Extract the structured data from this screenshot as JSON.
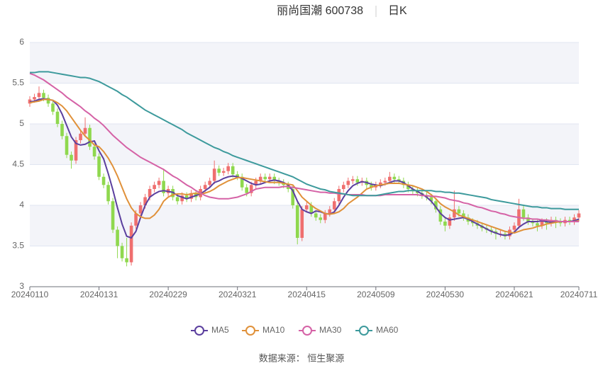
{
  "chart_data": {
    "type": "candlestick",
    "title": "丽尚国潮 600738",
    "subtitle": "日K",
    "source": "数据来源： 恒生聚源",
    "categories": [
      "20240110",
      null,
      null,
      null,
      null,
      null,
      null,
      null,
      null,
      null,
      null,
      null,
      null,
      null,
      null,
      "20240131",
      null,
      null,
      null,
      null,
      null,
      null,
      null,
      null,
      null,
      null,
      null,
      null,
      null,
      null,
      "20240229",
      null,
      null,
      null,
      null,
      null,
      null,
      null,
      null,
      null,
      null,
      null,
      null,
      null,
      null,
      "20240321",
      null,
      null,
      null,
      null,
      null,
      null,
      null,
      null,
      null,
      null,
      null,
      null,
      null,
      null,
      "20240415",
      null,
      null,
      null,
      null,
      null,
      null,
      null,
      null,
      null,
      null,
      null,
      null,
      null,
      null,
      "20240509",
      null,
      null,
      null,
      null,
      null,
      null,
      null,
      null,
      null,
      null,
      null,
      null,
      null,
      null,
      "20240530",
      null,
      null,
      null,
      null,
      null,
      null,
      null,
      null,
      null,
      null,
      null,
      null,
      null,
      null,
      "20240621",
      null,
      null,
      null,
      null,
      null,
      null,
      null,
      null,
      null,
      null,
      null,
      null,
      null,
      "20240711"
    ],
    "up_color": "#ef6f6f",
    "down_color": "#8fd84e",
    "candles": [
      [
        5.25,
        5.3,
        5.21,
        5.34
      ],
      [
        5.3,
        5.33,
        5.26,
        5.37
      ],
      [
        5.33,
        5.38,
        5.29,
        5.46
      ],
      [
        5.38,
        5.32,
        5.28,
        5.42
      ],
      [
        5.32,
        5.25,
        5.21,
        5.36
      ],
      [
        5.25,
        5.15,
        5.11,
        5.29
      ],
      [
        5.15,
        5.0,
        4.96,
        5.19
      ],
      [
        5.0,
        4.85,
        4.81,
        5.04
      ],
      [
        4.85,
        4.62,
        4.58,
        4.89
      ],
      [
        4.62,
        4.55,
        4.45,
        4.66
      ],
      [
        4.55,
        4.8,
        4.51,
        4.84
      ],
      [
        4.8,
        4.88,
        4.76,
        4.92
      ],
      [
        4.88,
        4.95,
        4.84,
        5.08
      ],
      [
        4.95,
        4.72,
        4.68,
        4.99
      ],
      [
        4.72,
        4.6,
        4.56,
        4.76
      ],
      [
        4.6,
        4.35,
        4.31,
        4.64
      ],
      [
        4.35,
        4.25,
        4.21,
        4.39
      ],
      [
        4.25,
        4.05,
        4.01,
        4.29
      ],
      [
        4.05,
        3.7,
        3.66,
        4.09
      ],
      [
        3.7,
        3.5,
        3.35,
        3.74
      ],
      [
        3.5,
        3.35,
        3.31,
        3.54
      ],
      [
        3.35,
        3.3,
        3.25,
        3.6
      ],
      [
        3.3,
        3.75,
        3.26,
        3.79
      ],
      [
        3.75,
        3.9,
        3.71,
        3.94
      ],
      [
        3.9,
        4.0,
        3.86,
        4.04
      ],
      [
        4.0,
        4.1,
        3.96,
        4.14
      ],
      [
        4.1,
        4.2,
        4.06,
        4.24
      ],
      [
        4.2,
        4.25,
        4.16,
        4.29
      ],
      [
        4.25,
        4.3,
        4.21,
        4.34
      ],
      [
        4.3,
        4.15,
        4.11,
        4.45
      ],
      [
        4.15,
        4.2,
        4.11,
        4.24
      ],
      [
        4.2,
        4.1,
        4.06,
        4.24
      ],
      [
        4.1,
        4.05,
        4.01,
        4.14
      ],
      [
        4.05,
        4.12,
        4.01,
        4.16
      ],
      [
        4.12,
        4.08,
        4.04,
        4.16
      ],
      [
        4.08,
        4.15,
        4.04,
        4.19
      ],
      [
        4.15,
        4.1,
        4.06,
        4.19
      ],
      [
        4.1,
        4.2,
        4.06,
        4.24
      ],
      [
        4.2,
        4.25,
        4.16,
        4.29
      ],
      [
        4.25,
        4.3,
        4.21,
        4.34
      ],
      [
        4.3,
        4.45,
        4.26,
        4.55
      ],
      [
        4.45,
        4.4,
        4.36,
        4.49
      ],
      [
        4.4,
        4.42,
        4.36,
        4.46
      ],
      [
        4.42,
        4.48,
        4.38,
        4.52
      ],
      [
        4.48,
        4.38,
        4.34,
        4.52
      ],
      [
        4.38,
        4.35,
        4.31,
        4.42
      ],
      [
        4.35,
        4.22,
        4.18,
        4.39
      ],
      [
        4.22,
        4.15,
        4.11,
        4.26
      ],
      [
        4.15,
        4.25,
        4.11,
        4.29
      ],
      [
        4.25,
        4.3,
        4.21,
        4.34
      ],
      [
        4.3,
        4.35,
        4.26,
        4.39
      ],
      [
        4.35,
        4.32,
        4.28,
        4.39
      ],
      [
        4.32,
        4.35,
        4.28,
        4.39
      ],
      [
        4.35,
        4.3,
        4.26,
        4.39
      ],
      [
        4.3,
        4.28,
        4.24,
        4.34
      ],
      [
        4.28,
        4.25,
        4.21,
        4.32
      ],
      [
        4.25,
        4.2,
        4.16,
        4.29
      ],
      [
        4.2,
        4.0,
        3.96,
        4.24
      ],
      [
        4.0,
        3.6,
        3.52,
        4.04
      ],
      [
        3.6,
        3.95,
        3.56,
        3.99
      ],
      [
        3.95,
        4.0,
        3.91,
        4.04
      ],
      [
        4.0,
        3.9,
        3.86,
        4.04
      ],
      [
        3.9,
        3.85,
        3.81,
        3.94
      ],
      [
        3.85,
        3.82,
        3.78,
        3.89
      ],
      [
        3.82,
        3.9,
        3.78,
        3.94
      ],
      [
        3.9,
        3.95,
        3.86,
        3.99
      ],
      [
        3.95,
        4.05,
        3.91,
        4.09
      ],
      [
        4.05,
        4.2,
        4.01,
        4.24
      ],
      [
        4.2,
        4.25,
        4.16,
        4.29
      ],
      [
        4.25,
        4.3,
        4.21,
        4.34
      ],
      [
        4.3,
        4.32,
        4.26,
        4.36
      ],
      [
        4.32,
        4.28,
        4.24,
        4.36
      ],
      [
        4.28,
        4.3,
        4.24,
        4.34
      ],
      [
        4.3,
        4.25,
        4.21,
        4.34
      ],
      [
        4.25,
        4.22,
        4.18,
        4.29
      ],
      [
        4.22,
        4.25,
        4.18,
        4.29
      ],
      [
        4.25,
        4.28,
        4.21,
        4.32
      ],
      [
        4.28,
        4.3,
        4.24,
        4.34
      ],
      [
        4.3,
        4.35,
        4.26,
        4.41
      ],
      [
        4.35,
        4.32,
        4.28,
        4.39
      ],
      [
        4.32,
        4.3,
        4.26,
        4.36
      ],
      [
        4.3,
        4.25,
        4.21,
        4.34
      ],
      [
        4.25,
        4.2,
        4.16,
        4.29
      ],
      [
        4.2,
        4.18,
        4.14,
        4.24
      ],
      [
        4.18,
        4.15,
        4.11,
        4.22
      ],
      [
        4.15,
        4.12,
        4.08,
        4.19
      ],
      [
        4.12,
        4.1,
        4.06,
        4.16
      ],
      [
        4.1,
        4.05,
        4.01,
        4.14
      ],
      [
        4.05,
        3.95,
        3.91,
        4.09
      ],
      [
        3.95,
        3.8,
        3.76,
        3.99
      ],
      [
        3.8,
        3.75,
        3.68,
        3.84
      ],
      [
        3.75,
        3.85,
        3.71,
        3.89
      ],
      [
        3.85,
        3.95,
        3.81,
        4.18
      ],
      [
        3.95,
        3.9,
        3.86,
        3.99
      ],
      [
        3.9,
        3.85,
        3.81,
        3.94
      ],
      [
        3.85,
        3.8,
        3.76,
        3.89
      ],
      [
        3.8,
        3.78,
        3.74,
        3.84
      ],
      [
        3.78,
        3.75,
        3.71,
        3.82
      ],
      [
        3.75,
        3.72,
        3.68,
        3.79
      ],
      [
        3.72,
        3.7,
        3.66,
        3.76
      ],
      [
        3.7,
        3.68,
        3.64,
        3.74
      ],
      [
        3.68,
        3.65,
        3.58,
        3.72
      ],
      [
        3.65,
        3.65,
        3.61,
        3.69
      ],
      [
        3.65,
        3.62,
        3.58,
        3.69
      ],
      [
        3.62,
        3.7,
        3.58,
        3.74
      ],
      [
        3.7,
        3.75,
        3.66,
        3.79
      ],
      [
        3.75,
        3.95,
        3.71,
        4.08
      ],
      [
        3.95,
        3.85,
        3.81,
        3.99
      ],
      [
        3.85,
        3.8,
        3.76,
        3.89
      ],
      [
        3.8,
        3.78,
        3.74,
        3.84
      ],
      [
        3.78,
        3.75,
        3.68,
        3.82
      ],
      [
        3.75,
        3.8,
        3.71,
        3.84
      ],
      [
        3.8,
        3.78,
        3.7,
        3.84
      ],
      [
        3.78,
        3.82,
        3.74,
        3.86
      ],
      [
        3.82,
        3.8,
        3.72,
        3.86
      ],
      [
        3.8,
        3.78,
        3.74,
        3.84
      ],
      [
        3.78,
        3.82,
        3.74,
        3.86
      ],
      [
        3.82,
        3.8,
        3.76,
        3.86
      ],
      [
        3.8,
        3.85,
        3.76,
        3.89
      ],
      [
        3.85,
        3.9,
        3.8,
        3.94
      ]
    ],
    "series": [
      {
        "name": "MA5",
        "color": "#5b3f9e",
        "values": [
          5.27,
          5.28,
          5.3,
          5.31,
          5.3,
          5.29,
          5.23,
          5.12,
          4.98,
          4.84,
          4.76,
          4.74,
          4.75,
          4.78,
          4.79,
          4.67,
          4.57,
          4.39,
          4.19,
          3.97,
          3.77,
          3.62,
          3.6,
          3.68,
          3.85,
          4.0,
          4.1,
          4.14,
          4.17,
          4.18,
          4.17,
          4.16,
          4.12,
          4.1,
          4.08,
          4.1,
          4.12,
          4.14,
          4.18,
          4.22,
          4.28,
          4.3,
          4.33,
          4.35,
          4.36,
          4.35,
          4.33,
          4.3,
          4.27,
          4.25,
          4.26,
          4.28,
          4.3,
          4.31,
          4.3,
          4.28,
          4.25,
          4.18,
          4.05,
          3.95,
          3.92,
          3.9,
          3.93,
          3.92,
          3.9,
          3.89,
          3.92,
          4.0,
          4.1,
          4.18,
          4.24,
          4.27,
          4.29,
          4.28,
          4.26,
          4.25,
          4.24,
          4.26,
          4.28,
          4.3,
          4.3,
          4.28,
          4.24,
          4.2,
          4.17,
          4.14,
          4.1,
          4.05,
          3.98,
          3.9,
          3.85,
          3.82,
          3.83,
          3.84,
          3.85,
          3.83,
          3.8,
          3.77,
          3.74,
          3.71,
          3.68,
          3.66,
          3.64,
          3.63,
          3.64,
          3.67,
          3.73,
          3.77,
          3.8,
          3.8,
          3.8,
          3.81,
          3.8,
          3.79,
          3.8,
          3.8,
          3.8,
          3.8,
          3.81,
          3.83
        ]
      },
      {
        "name": "MA10",
        "color": "#e0913a",
        "values": [
          5.26,
          5.27,
          5.28,
          5.3,
          5.3,
          5.29,
          5.26,
          5.22,
          5.16,
          5.08,
          5.0,
          4.92,
          4.85,
          4.8,
          4.74,
          4.72,
          4.66,
          4.58,
          4.48,
          4.36,
          4.22,
          4.08,
          3.97,
          3.9,
          3.86,
          3.84,
          3.84,
          3.88,
          3.95,
          4.05,
          4.1,
          4.13,
          4.14,
          4.14,
          4.13,
          4.14,
          4.15,
          4.14,
          4.15,
          4.17,
          4.2,
          4.24,
          4.27,
          4.3,
          4.32,
          4.34,
          4.34,
          4.33,
          4.32,
          4.31,
          4.3,
          4.29,
          4.28,
          4.28,
          4.28,
          4.27,
          4.26,
          4.25,
          4.18,
          4.1,
          4.05,
          4.0,
          3.96,
          3.93,
          3.9,
          3.89,
          3.9,
          3.92,
          3.96,
          4.02,
          4.06,
          4.1,
          4.15,
          4.2,
          4.22,
          4.24,
          4.25,
          4.26,
          4.27,
          4.27,
          4.27,
          4.26,
          4.25,
          4.24,
          4.22,
          4.2,
          4.17,
          4.13,
          4.08,
          4.02,
          3.98,
          3.95,
          3.92,
          3.88,
          3.86,
          3.84,
          3.82,
          3.8,
          3.78,
          3.76,
          3.74,
          3.72,
          3.7,
          3.68,
          3.67,
          3.66,
          3.68,
          3.7,
          3.71,
          3.72,
          3.74,
          3.75,
          3.77,
          3.78,
          3.79,
          3.8,
          3.8,
          3.8,
          3.8,
          3.81
        ]
      },
      {
        "name": "MA30",
        "color": "#d562a6",
        "values": [
          5.62,
          5.6,
          5.57,
          5.54,
          5.5,
          5.46,
          5.42,
          5.38,
          5.33,
          5.29,
          5.25,
          5.21,
          5.16,
          5.12,
          5.07,
          5.03,
          4.98,
          4.92,
          4.86,
          4.81,
          4.76,
          4.71,
          4.67,
          4.63,
          4.59,
          4.56,
          4.53,
          4.5,
          4.47,
          4.44,
          4.4,
          4.36,
          4.33,
          4.29,
          4.25,
          4.22,
          4.18,
          4.15,
          4.12,
          4.1,
          4.09,
          4.08,
          4.08,
          4.08,
          4.09,
          4.1,
          4.12,
          4.14,
          4.17,
          4.2,
          4.21,
          4.22,
          4.22,
          4.22,
          4.22,
          4.23,
          4.23,
          4.22,
          4.21,
          4.2,
          4.19,
          4.18,
          4.17,
          4.16,
          4.16,
          4.15,
          4.15,
          4.14,
          4.14,
          4.13,
          4.13,
          4.13,
          4.13,
          4.12,
          4.12,
          4.12,
          4.12,
          4.13,
          4.13,
          4.13,
          4.13,
          4.13,
          4.13,
          4.13,
          4.13,
          4.12,
          4.12,
          4.11,
          4.11,
          4.1,
          4.09,
          4.07,
          4.06,
          4.05,
          4.03,
          4.02,
          4.0,
          3.98,
          3.97,
          3.95,
          3.93,
          3.92,
          3.9,
          3.89,
          3.87,
          3.86,
          3.85,
          3.84,
          3.84,
          3.83,
          3.83,
          3.82,
          3.82,
          3.81,
          3.81,
          3.8,
          3.8,
          3.8,
          3.8,
          3.8
        ]
      },
      {
        "name": "MA60",
        "color": "#3d9a9c",
        "values": [
          5.63,
          5.63,
          5.64,
          5.64,
          5.64,
          5.63,
          5.62,
          5.61,
          5.6,
          5.59,
          5.58,
          5.57,
          5.57,
          5.56,
          5.54,
          5.52,
          5.49,
          5.46,
          5.43,
          5.4,
          5.36,
          5.33,
          5.29,
          5.25,
          5.21,
          5.17,
          5.14,
          5.11,
          5.08,
          5.05,
          5.02,
          4.99,
          4.96,
          4.93,
          4.89,
          4.86,
          4.83,
          4.8,
          4.77,
          4.74,
          4.71,
          4.69,
          4.66,
          4.64,
          4.61,
          4.59,
          4.57,
          4.55,
          4.53,
          4.51,
          4.49,
          4.47,
          4.45,
          4.43,
          4.41,
          4.39,
          4.37,
          4.35,
          4.32,
          4.29,
          4.26,
          4.24,
          4.22,
          4.2,
          4.19,
          4.17,
          4.16,
          4.15,
          4.14,
          4.13,
          4.12,
          4.12,
          4.12,
          4.12,
          4.12,
          4.12,
          4.13,
          4.14,
          4.15,
          4.16,
          4.17,
          4.17,
          4.18,
          4.18,
          4.18,
          4.18,
          4.18,
          4.18,
          4.17,
          4.17,
          4.16,
          4.16,
          4.15,
          4.15,
          4.14,
          4.13,
          4.12,
          4.11,
          4.1,
          4.09,
          4.07,
          4.06,
          4.05,
          4.04,
          4.03,
          4.02,
          4.01,
          4.0,
          3.99,
          3.98,
          3.98,
          3.97,
          3.97,
          3.96,
          3.96,
          3.96,
          3.95,
          3.95,
          3.95,
          3.95
        ]
      }
    ],
    "ylim": [
      3,
      6
    ],
    "yticks": [
      3,
      3.5,
      4,
      4.5,
      5,
      5.5,
      6
    ],
    "grid": true,
    "legend": "bottom"
  }
}
